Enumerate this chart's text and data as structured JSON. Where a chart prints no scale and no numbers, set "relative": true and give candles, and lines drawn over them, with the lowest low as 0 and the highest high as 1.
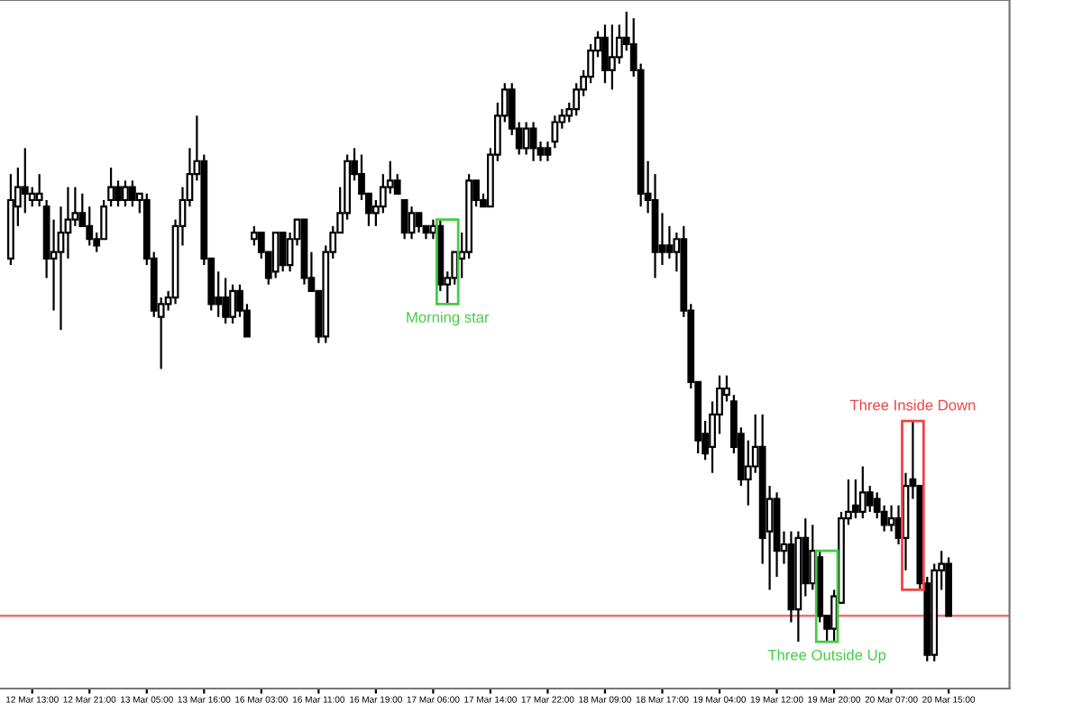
{
  "chart_data": {
    "type": "candlestick",
    "relative": true,
    "tick_labels": "x",
    "grid": false,
    "categories": [
      null,
      null,
      null,
      "12 Mar 13:00",
      null,
      null,
      null,
      null,
      null,
      null,
      null,
      "12 Mar 21:00",
      null,
      null,
      null,
      null,
      null,
      null,
      null,
      "13 Mar 05:00",
      null,
      null,
      null,
      null,
      null,
      null,
      null,
      "13 Mar 16:00",
      null,
      null,
      null,
      null,
      null,
      null,
      null,
      "16 Mar 03:00",
      null,
      null,
      null,
      null,
      null,
      null,
      null,
      "16 Mar 11:00",
      null,
      null,
      null,
      null,
      null,
      null,
      null,
      "16 Mar 19:00",
      null,
      null,
      null,
      null,
      null,
      null,
      null,
      "17 Mar 06:00",
      null,
      null,
      null,
      null,
      null,
      null,
      null,
      "17 Mar 14:00",
      null,
      null,
      null,
      null,
      null,
      null,
      null,
      "17 Mar 22:00",
      null,
      null,
      null,
      null,
      null,
      null,
      null,
      "18 Mar 09:00",
      null,
      null,
      null,
      null,
      null,
      null,
      null,
      "18 Mar 17:00",
      null,
      null,
      null,
      null,
      null,
      null,
      null,
      "19 Mar 04:00",
      null,
      null,
      null,
      null,
      null,
      null,
      null,
      "19 Mar 12:00",
      null,
      null,
      null,
      null,
      null,
      null,
      null,
      "19 Mar 20:00",
      null,
      null,
      null,
      null,
      null,
      null,
      null,
      "20 Mar 07:00",
      null,
      null,
      null,
      null,
      null,
      null,
      null,
      "20 Mar 15:00"
    ],
    "ohlc": [
      [
        0.62,
        0.75,
        0.61,
        0.71
      ],
      [
        0.7,
        0.76,
        0.67,
        0.73
      ],
      [
        0.73,
        0.79,
        0.69,
        0.72
      ],
      [
        0.71,
        0.73,
        0.7,
        0.72
      ],
      [
        0.71,
        0.75,
        0.7,
        0.72
      ],
      [
        0.7,
        0.71,
        0.59,
        0.62
      ],
      [
        0.62,
        0.68,
        0.54,
        0.63
      ],
      [
        0.63,
        0.7,
        0.51,
        0.66
      ],
      [
        0.66,
        0.73,
        0.62,
        0.68
      ],
      [
        0.68,
        0.73,
        0.67,
        0.69
      ],
      [
        0.69,
        0.72,
        0.67,
        0.67
      ],
      [
        0.67,
        0.7,
        0.64,
        0.65
      ],
      [
        0.65,
        0.66,
        0.63,
        0.64
      ],
      [
        0.65,
        0.71,
        0.65,
        0.7
      ],
      [
        0.71,
        0.76,
        0.7,
        0.73
      ],
      [
        0.73,
        0.74,
        0.7,
        0.71
      ],
      [
        0.71,
        0.74,
        0.7,
        0.73
      ],
      [
        0.73,
        0.74,
        0.7,
        0.71
      ],
      [
        0.71,
        0.72,
        0.69,
        0.72
      ],
      [
        0.71,
        0.72,
        0.61,
        0.62
      ],
      [
        0.62,
        0.63,
        0.53,
        0.54
      ],
      [
        0.53,
        0.56,
        0.45,
        0.55
      ],
      [
        0.55,
        0.57,
        0.54,
        0.56
      ],
      [
        0.56,
        0.68,
        0.55,
        0.67
      ],
      [
        0.67,
        0.73,
        0.64,
        0.71
      ],
      [
        0.71,
        0.79,
        0.7,
        0.75
      ],
      [
        0.75,
        0.84,
        0.74,
        0.77
      ],
      [
        0.77,
        0.78,
        0.61,
        0.62
      ],
      [
        0.62,
        0.62,
        0.54,
        0.55
      ],
      [
        0.56,
        0.6,
        0.53,
        0.55
      ],
      [
        0.56,
        0.59,
        0.52,
        0.53
      ],
      [
        0.53,
        0.58,
        0.52,
        0.57
      ],
      [
        0.57,
        0.58,
        0.53,
        0.54
      ],
      [
        0.54,
        0.55,
        0.5,
        0.5
      ],
      [
        0.65,
        0.67,
        0.64,
        0.66
      ],
      [
        0.66,
        0.66,
        0.62,
        0.63
      ],
      [
        0.63,
        0.63,
        0.58,
        0.59
      ],
      [
        0.6,
        0.66,
        0.59,
        0.66
      ],
      [
        0.66,
        0.66,
        0.6,
        0.61
      ],
      [
        0.61,
        0.66,
        0.6,
        0.65
      ],
      [
        0.65,
        0.68,
        0.64,
        0.68
      ],
      [
        0.68,
        0.68,
        0.58,
        0.59
      ],
      [
        0.59,
        0.63,
        0.57,
        0.57
      ],
      [
        0.57,
        0.57,
        0.49,
        0.5
      ],
      [
        0.5,
        0.64,
        0.49,
        0.63
      ],
      [
        0.63,
        0.67,
        0.62,
        0.66
      ],
      [
        0.66,
        0.73,
        0.66,
        0.69
      ],
      [
        0.69,
        0.78,
        0.68,
        0.77
      ],
      [
        0.77,
        0.79,
        0.74,
        0.75
      ],
      [
        0.75,
        0.78,
        0.71,
        0.72
      ],
      [
        0.72,
        0.72,
        0.67,
        0.69
      ],
      [
        0.69,
        0.71,
        0.67,
        0.7
      ],
      [
        0.7,
        0.75,
        0.69,
        0.73
      ],
      [
        0.73,
        0.77,
        0.72,
        0.74
      ],
      [
        0.74,
        0.75,
        0.72,
        0.72
      ],
      [
        0.71,
        0.71,
        0.65,
        0.66
      ],
      [
        0.66,
        0.7,
        0.65,
        0.69
      ],
      [
        0.69,
        0.69,
        0.66,
        0.67
      ],
      [
        0.67,
        0.67,
        0.65,
        0.66
      ],
      [
        0.66,
        0.68,
        0.65,
        0.67
      ],
      [
        0.67,
        0.68,
        0.57,
        0.58
      ],
      [
        0.58,
        0.6,
        0.55,
        0.59
      ],
      [
        0.59,
        0.63,
        0.58,
        0.63
      ],
      [
        0.62,
        0.66,
        0.59,
        0.63
      ],
      [
        0.63,
        0.75,
        0.62,
        0.74
      ],
      [
        0.74,
        0.74,
        0.7,
        0.71
      ],
      [
        0.71,
        0.72,
        0.7,
        0.7
      ],
      [
        0.7,
        0.79,
        0.7,
        0.78
      ],
      [
        0.78,
        0.86,
        0.77,
        0.84
      ],
      [
        0.84,
        0.89,
        0.83,
        0.88
      ],
      [
        0.88,
        0.89,
        0.81,
        0.82
      ],
      [
        0.82,
        0.83,
        0.78,
        0.79
      ],
      [
        0.79,
        0.83,
        0.78,
        0.82
      ],
      [
        0.82,
        0.83,
        0.77,
        0.79
      ],
      [
        0.79,
        0.8,
        0.77,
        0.78
      ],
      [
        0.79,
        0.8,
        0.77,
        0.78
      ],
      [
        0.8,
        0.84,
        0.79,
        0.83
      ],
      [
        0.83,
        0.85,
        0.82,
        0.84
      ],
      [
        0.84,
        0.86,
        0.83,
        0.85
      ],
      [
        0.85,
        0.89,
        0.84,
        0.88
      ],
      [
        0.88,
        0.91,
        0.87,
        0.9
      ],
      [
        0.9,
        0.95,
        0.89,
        0.94
      ],
      [
        0.94,
        0.97,
        0.93,
        0.96
      ],
      [
        0.96,
        0.98,
        0.89,
        0.91
      ],
      [
        0.91,
        0.98,
        0.88,
        0.93
      ],
      [
        0.93,
        0.98,
        0.92,
        0.96
      ],
      [
        0.96,
        1,
        0.94,
        0.95
      ],
      [
        0.95,
        0.99,
        0.9,
        0.91
      ],
      [
        0.91,
        0.92,
        0.7,
        0.72
      ],
      [
        0.72,
        0.77,
        0.69,
        0.71
      ],
      [
        0.71,
        0.75,
        0.59,
        0.63
      ],
      [
        0.64,
        0.69,
        0.61,
        0.63
      ],
      [
        0.64,
        0.67,
        0.62,
        0.63
      ],
      [
        0.63,
        0.66,
        0.6,
        0.65
      ],
      [
        0.65,
        0.67,
        0.53,
        0.54
      ],
      [
        0.54,
        0.55,
        0.42,
        0.43
      ],
      [
        0.43,
        0.43,
        0.32,
        0.34
      ],
      [
        0.35,
        0.37,
        0.31,
        0.32
      ],
      [
        0.33,
        0.4,
        0.29,
        0.38
      ],
      [
        0.38,
        0.44,
        0.35,
        0.42
      ],
      [
        0.41,
        0.44,
        0.4,
        0.42
      ],
      [
        0.4,
        0.41,
        0.32,
        0.33
      ],
      [
        0.35,
        0.36,
        0.27,
        0.28
      ],
      [
        0.28,
        0.34,
        0.24,
        0.3
      ],
      [
        0.3,
        0.38,
        0.29,
        0.33
      ],
      [
        0.33,
        0.38,
        0.15,
        0.19
      ],
      [
        0.2,
        0.27,
        0.11,
        0.25
      ],
      [
        0.25,
        0.26,
        0.13,
        0.17
      ],
      [
        0.17,
        0.2,
        0.15,
        0.18
      ],
      [
        0.18,
        0.2,
        0.06,
        0.08
      ],
      [
        0.08,
        0.2,
        0.03,
        0.19
      ],
      [
        0.19,
        0.22,
        0.1,
        0.12
      ],
      [
        0.12,
        0.21,
        0.11,
        0.17
      ],
      [
        0.16,
        0.17,
        0.06,
        0.07
      ],
      [
        0.07,
        0.07,
        0.03,
        0.05
      ],
      [
        0.05,
        0.11,
        0.03,
        0.1
      ],
      [
        0.09,
        0.23,
        0.09,
        0.22
      ],
      [
        0.22,
        0.28,
        0.21,
        0.23
      ],
      [
        0.24,
        0.28,
        0.22,
        0.23
      ],
      [
        0.23,
        0.3,
        0.22,
        0.26
      ],
      [
        0.26,
        0.27,
        0.23,
        0.24
      ],
      [
        0.25,
        0.26,
        0.22,
        0.23
      ],
      [
        0.23,
        0.24,
        0.2,
        0.21
      ],
      [
        0.21,
        0.24,
        0.2,
        0.22
      ],
      [
        0.22,
        0.24,
        0.18,
        0.19
      ],
      [
        0.19,
        0.29,
        0.14,
        0.27
      ],
      [
        0.28,
        0.37,
        0.25,
        0.27
      ],
      [
        0.27,
        0.27,
        0.11,
        0.12
      ],
      [
        0.12,
        0.13,
        0,
        0.01
      ],
      [
        0.01,
        0.15,
        0,
        0.14
      ],
      [
        0.14,
        0.17,
        0.11,
        0.15
      ],
      [
        0.15,
        0.16,
        0.07,
        0.07
      ]
    ],
    "ref_lines": [
      {
        "axis": "y",
        "value": 0.07,
        "color": "#f07070"
      }
    ],
    "annotations": [
      "Morning star",
      "Three Outside Up",
      "Three Inside Down"
    ]
  }
}
